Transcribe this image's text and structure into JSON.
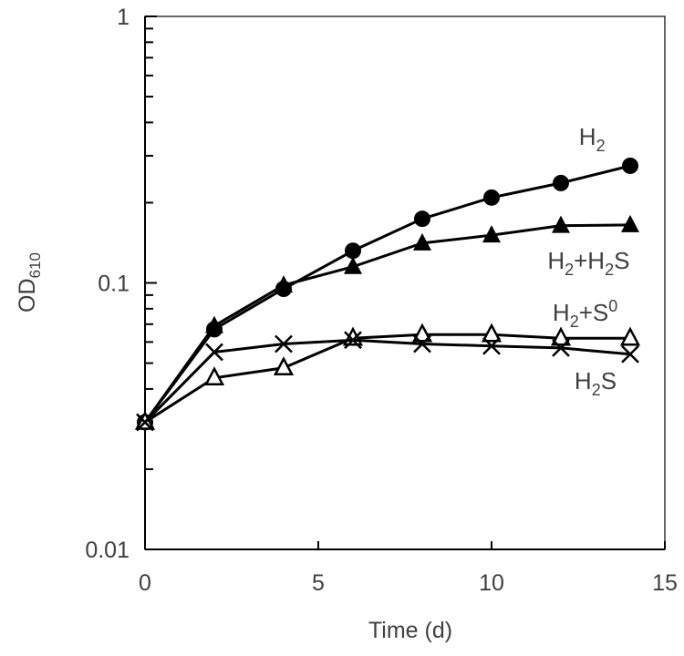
{
  "chart_data": {
    "type": "line",
    "title": "",
    "xlabel": "Time (d)",
    "ylabel": {
      "main": "OD",
      "sub": "610"
    },
    "yscale": "log",
    "xlim": [
      0,
      15
    ],
    "ylim": [
      0.01,
      1
    ],
    "xticks": [
      "0",
      "5",
      "10",
      "15"
    ],
    "xtick_values": [
      0,
      5,
      10,
      15
    ],
    "yticks": [
      "0.01",
      "0.1",
      "1"
    ],
    "ytick_values": [
      0.01,
      0.1,
      1
    ],
    "grid": false,
    "x": [
      0,
      2,
      4,
      6,
      8,
      10,
      12,
      14
    ],
    "series": [
      {
        "name": "H2",
        "label": {
          "main": "H",
          "sub": "2",
          "rest": ""
        },
        "marker": "filled-circle",
        "values": [
          0.03,
          0.067,
          0.095,
          0.132,
          0.174,
          0.209,
          0.237,
          0.275
        ],
        "label_anchor": [
          12.9,
          0.33
        ]
      },
      {
        "name": "H2+H2S",
        "label": {
          "main": "H",
          "sub": "2",
          "rest": "+H",
          "sub2": "2",
          "rest2": "S"
        },
        "marker": "filled-triangle",
        "values": [
          0.03,
          0.069,
          0.098,
          0.115,
          0.141,
          0.151,
          0.164,
          0.165
        ],
        "label_anchor": [
          12.8,
          0.113
        ]
      },
      {
        "name": "H2+S0",
        "label": {
          "main": "H",
          "sub": "2",
          "rest": "+S",
          "sup": "0"
        },
        "marker": "open-triangle",
        "values": [
          0.03,
          0.044,
          0.048,
          0.062,
          0.064,
          0.064,
          0.062,
          0.062
        ],
        "label_anchor": [
          12.7,
          0.072
        ]
      },
      {
        "name": "H2S",
        "label": {
          "main": "H",
          "sub": "2",
          "rest": "S"
        },
        "marker": "cross",
        "values": [
          0.03,
          0.055,
          0.059,
          0.061,
          0.059,
          0.058,
          0.057,
          0.054
        ],
        "label_anchor": [
          13.0,
          0.04
        ]
      }
    ]
  }
}
